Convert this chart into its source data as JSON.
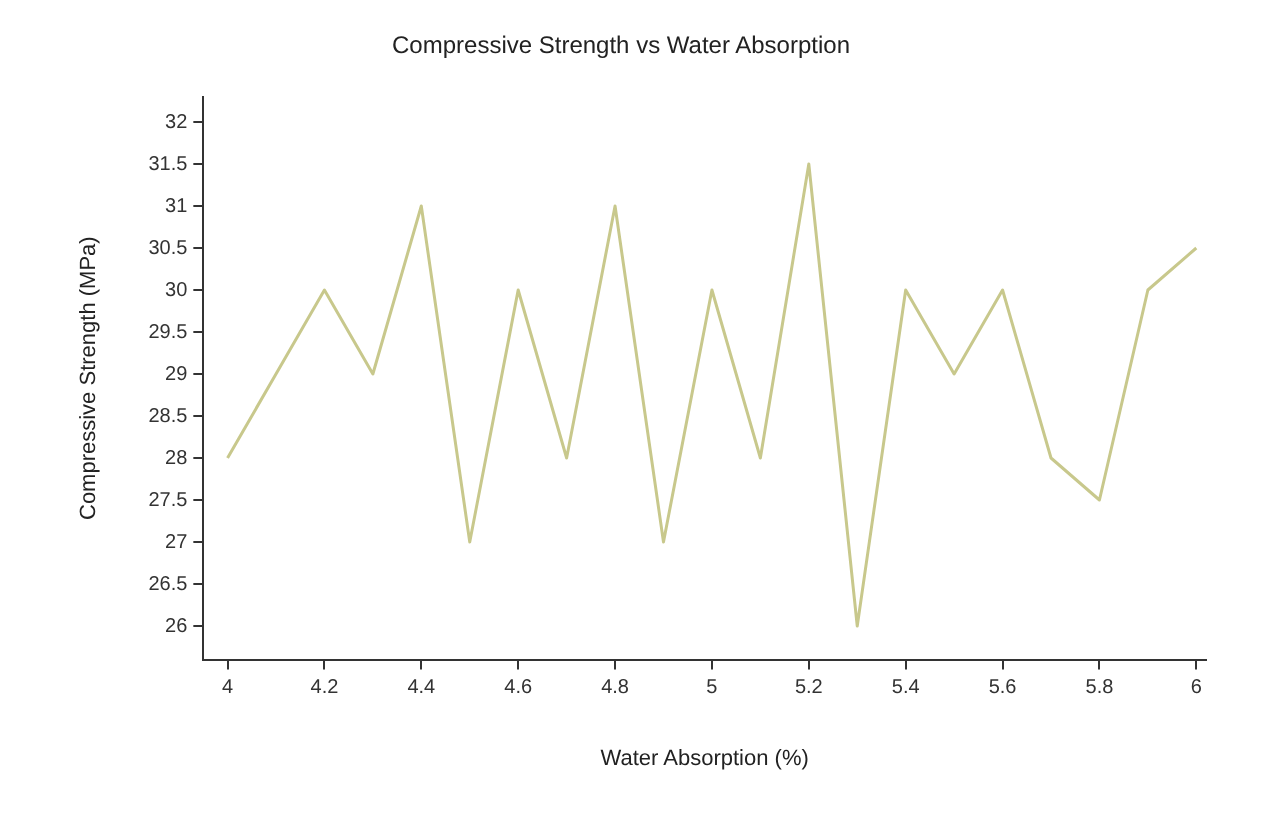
{
  "chart_data": {
    "type": "line",
    "title": "Compressive Strength vs Water Absorption",
    "xlabel": "Water Absorption (%)",
    "ylabel": "Compressive Strength (MPa)",
    "x": [
      4,
      4.1,
      4.2,
      4.3,
      4.4,
      4.5,
      4.6,
      4.7,
      4.8,
      4.9,
      5,
      5.1,
      5.2,
      5.3,
      5.4,
      5.5,
      5.6,
      5.7,
      5.8,
      5.9,
      6
    ],
    "series": [
      {
        "color": "#c8c88c",
        "values": [
          28,
          29,
          30,
          29,
          31,
          27,
          30,
          28,
          31,
          27,
          30,
          28,
          31.5,
          26,
          30,
          29,
          30,
          28,
          27.5,
          30,
          30.5
        ]
      }
    ],
    "xlim": [
      3.95,
      6.02
    ],
    "xticks": [
      4,
      4.2,
      4.4,
      4.6,
      4.8,
      5,
      5.2,
      5.4,
      5.6,
      5.8,
      6
    ],
    "ylim": [
      25.6,
      32.3
    ],
    "yticks": [
      26,
      26.5,
      27,
      27.5,
      28,
      28.5,
      29,
      29.5,
      30,
      30.5,
      31,
      31.5,
      32
    ],
    "grid": false,
    "legend": false,
    "marker": "none",
    "line_style": "solid"
  }
}
